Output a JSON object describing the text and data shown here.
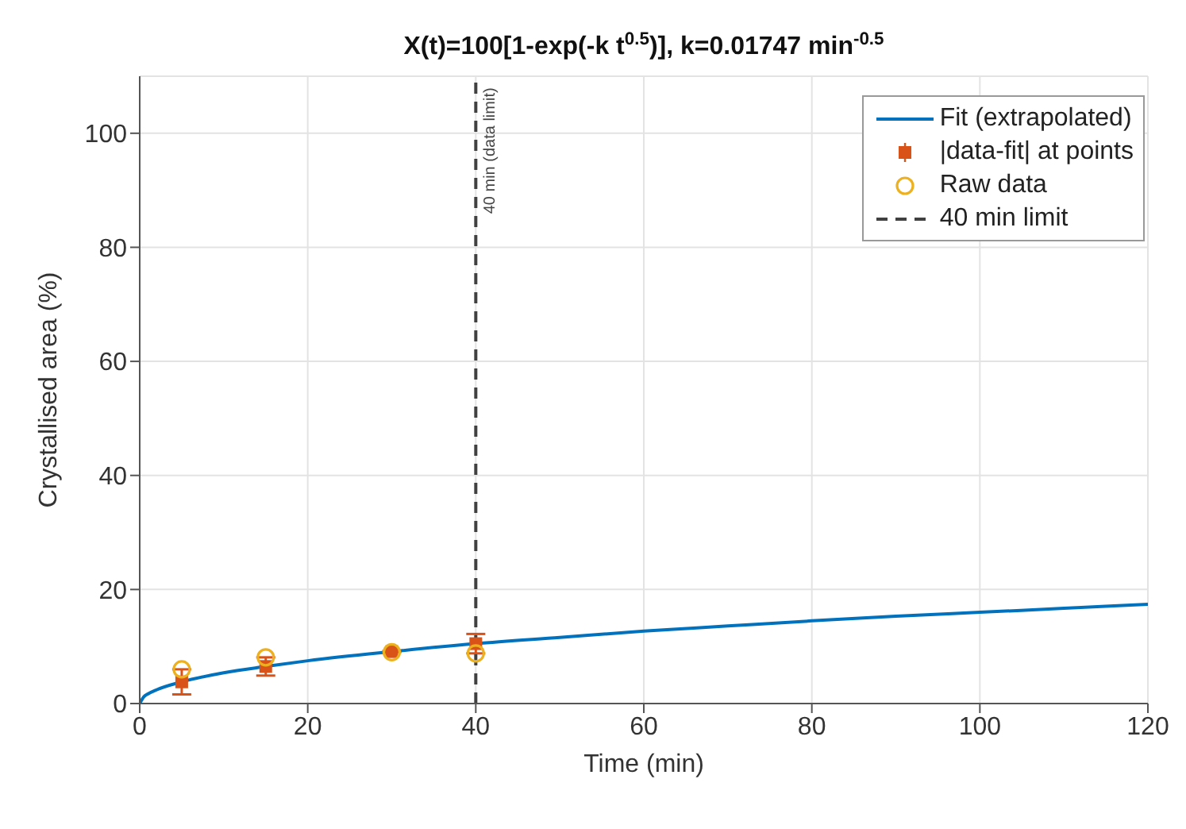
{
  "chart_data": {
    "type": "line",
    "title": "X(t)=100[1-exp(-k t$^{0.5}$)],  k=0.01747 min$^{-0.5}$",
    "xlabel": "Time (min)",
    "ylabel": "Crystallised area (%)",
    "xlim": [
      0,
      120
    ],
    "xticks": [
      0,
      20,
      40,
      60,
      80,
      100,
      120
    ],
    "ylim": [
      0,
      110
    ],
    "yticks": [
      0,
      20,
      40,
      60,
      80,
      100
    ],
    "grid": true,
    "legend": "top right",
    "annotations": [
      {
        "text": "40 min (data limit)",
        "x": 40,
        "y": 108
      }
    ],
    "series": [
      {
        "name": "Fit (extrapolated)",
        "color": "#0072bd",
        "marker": "none",
        "line_style": "solid",
        "x": [
          0,
          0.5,
          1,
          2,
          5,
          10,
          15,
          20,
          30,
          40,
          50,
          60,
          70,
          80,
          90,
          100,
          110,
          120
        ],
        "values": [
          0,
          1.2,
          1.7,
          2.4,
          3.8,
          5.4,
          6.5,
          7.5,
          9.1,
          10.5,
          11.6,
          12.7,
          13.6,
          14.5,
          15.3,
          16.0,
          16.7,
          17.4
        ]
      },
      {
        "name": "|data-fit| at points",
        "type": "scatter",
        "color": "#d95319",
        "marker": "square",
        "x": [
          5,
          15,
          30,
          40
        ],
        "values": [
          3.8,
          6.5,
          9.1,
          10.5
        ],
        "errors": [
          2.2,
          1.6,
          0.1,
          1.7
        ]
      },
      {
        "name": "Raw data",
        "type": "scatter",
        "color": "#edb120",
        "marker": "circle",
        "x": [
          5,
          15,
          30,
          40
        ],
        "values": [
          6.0,
          8.1,
          9.0,
          8.8
        ]
      },
      {
        "name": "40 min limit",
        "color": "#404040",
        "marker": "none",
        "line_style": "dashed",
        "x": [
          40,
          40
        ],
        "values": [
          0,
          110
        ]
      }
    ]
  }
}
